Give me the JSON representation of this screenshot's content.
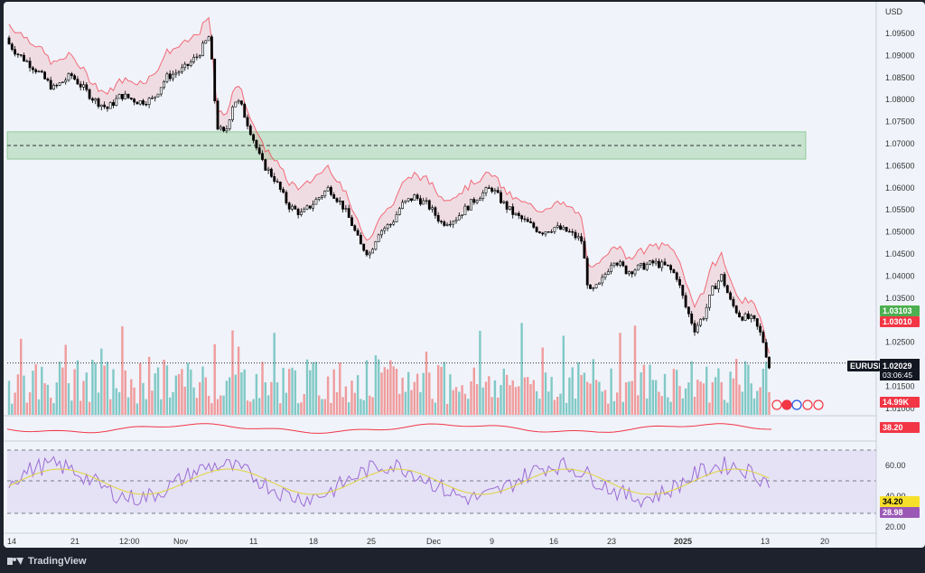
{
  "currency_label": "USD",
  "price_ticks": [
    "1.09500",
    "1.09000",
    "1.08500",
    "1.08000",
    "1.07500",
    "1.07000",
    "1.06500",
    "1.06000",
    "1.05500",
    "1.05000",
    "1.04500",
    "1.04000",
    "1.03500",
    "1.02500",
    "1.01500",
    "1.01000"
  ],
  "rsi_ticks": [
    "60.00",
    "40.00",
    "20.00"
  ],
  "time_ticks": [
    "14",
    "21",
    "12:00",
    "Nov",
    "11",
    "18",
    "25",
    "Dec",
    "9",
    "16",
    "23",
    "2025",
    "13",
    "20"
  ],
  "price_badges": {
    "upper": {
      "text": "1.03103",
      "color": "#4caf50"
    },
    "lower": {
      "text": "1.03010",
      "color": "#f23645"
    },
    "symbol": "EURUSD",
    "current_price": "1.02029",
    "countdown": "03:06:45",
    "volume": {
      "text": "14.99K",
      "color": "#f23645"
    },
    "osc_value": {
      "text": "38.20",
      "color": "#f23645"
    },
    "rsi_ma": {
      "text": "34.20",
      "color": "#f7e02b"
    },
    "rsi": {
      "text": "28.98",
      "color": "#9b59b6"
    }
  },
  "branding": "TradingView",
  "colors": {
    "up": "#4caf50",
    "down": "#f23645",
    "rsi": "#9c6cd6",
    "rsi_ma": "#e0d43a",
    "zone": "#4caf50"
  },
  "chart_data": {
    "type": "candlestick",
    "symbol": "EURUSD",
    "currency": "USD",
    "price_range": [
      1.01,
      1.099
    ],
    "current_price": 1.02029,
    "supply_demand_zone": {
      "low": 1.0665,
      "high": 1.0727,
      "mid": 1.0696
    },
    "close_path": [
      [
        0,
        1.094
      ],
      [
        15,
        1.0905
      ],
      [
        35,
        1.087
      ],
      [
        55,
        1.0825
      ],
      [
        75,
        1.0855
      ],
      [
        100,
        1.08
      ],
      [
        115,
        1.078
      ],
      [
        130,
        1.081
      ],
      [
        150,
        1.0795
      ],
      [
        165,
        1.08
      ],
      [
        180,
        1.085
      ],
      [
        200,
        1.087
      ],
      [
        215,
        1.09
      ],
      [
        228,
        1.0945
      ],
      [
        236,
        1.074
      ],
      [
        245,
        1.072
      ],
      [
        255,
        1.08
      ],
      [
        262,
        1.079
      ],
      [
        275,
        1.072
      ],
      [
        285,
        1.066
      ],
      [
        300,
        1.062
      ],
      [
        315,
        1.056
      ],
      [
        330,
        1.054
      ],
      [
        345,
        1.057
      ],
      [
        360,
        1.06
      ],
      [
        375,
        1.056
      ],
      [
        385,
        1.052
      ],
      [
        395,
        1.047
      ],
      [
        405,
        1.045
      ],
      [
        415,
        1.05
      ],
      [
        430,
        1.052
      ],
      [
        440,
        1.056
      ],
      [
        455,
        1.058
      ],
      [
        470,
        1.056
      ],
      [
        485,
        1.052
      ],
      [
        500,
        1.053
      ],
      [
        515,
        1.056
      ],
      [
        525,
        1.058
      ],
      [
        540,
        1.06
      ],
      [
        555,
        1.056
      ],
      [
        565,
        1.054
      ],
      [
        580,
        1.052
      ],
      [
        595,
        1.05
      ],
      [
        610,
        1.051
      ],
      [
        625,
        1.05
      ],
      [
        640,
        1.048
      ],
      [
        648,
        1.036
      ],
      [
        660,
        1.038
      ],
      [
        675,
        1.044
      ],
      [
        690,
        1.041
      ],
      [
        705,
        1.042
      ],
      [
        720,
        1.043
      ],
      [
        735,
        1.042
      ],
      [
        745,
        1.04
      ],
      [
        755,
        1.033
      ],
      [
        765,
        1.028
      ],
      [
        775,
        1.031
      ],
      [
        785,
        1.037
      ],
      [
        795,
        1.04
      ],
      [
        805,
        1.034
      ],
      [
        815,
        1.031
      ],
      [
        830,
        1.03
      ],
      [
        840,
        1.026
      ],
      [
        848,
        1.019
      ],
      [
        852,
        1.02029
      ]
    ],
    "rsi": {
      "levels": [
        70,
        50,
        30
      ],
      "current": 28.98,
      "ma_current": 34.2
    },
    "oscillator_current": 38.2,
    "volume_current": "14.99K"
  }
}
